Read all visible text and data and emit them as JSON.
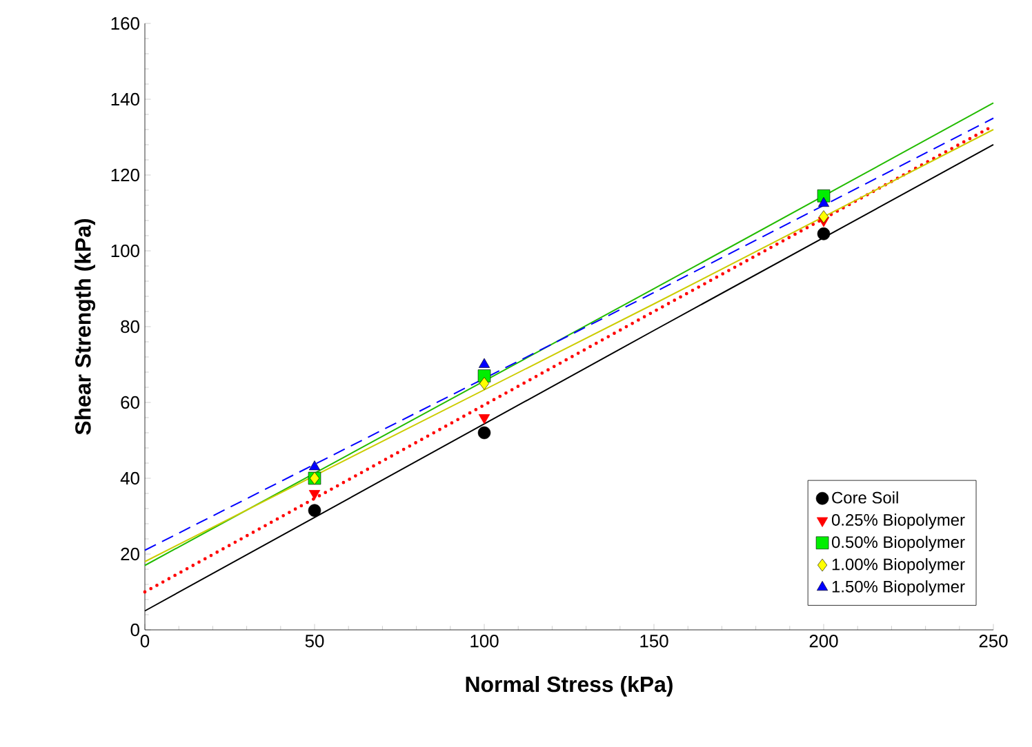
{
  "chart_data": {
    "type": "scatter",
    "xlabel": "Normal Stress (kPa)",
    "ylabel": "Shear Strength (kPa)",
    "x": [
      50,
      100,
      200
    ],
    "series": [
      {
        "name": "Core Soil",
        "color": "#000000",
        "marker": "circle",
        "values": [
          31.5,
          52,
          104.5
        ]
      },
      {
        "name": "0.25% Biopolymer",
        "color": "#ff0000",
        "marker": "triangle-down",
        "values": [
          36,
          56,
          108
        ]
      },
      {
        "name": "0.50% Biopolymer",
        "color": "#00ee00",
        "marker": "square",
        "values": [
          40,
          67,
          114.5
        ]
      },
      {
        "name": "1.00% Biopolymer",
        "color": "#ffff00",
        "marker": "diamond",
        "values": [
          40,
          65,
          109
        ]
      },
      {
        "name": "1.50% Biopolymer",
        "color": "#0000ff",
        "marker": "triangle",
        "values": [
          43,
          70,
          112.5
        ]
      },
      {
        "type": "line",
        "color": "#000000",
        "line_style": "solid",
        "x": [
          0,
          150,
          250
        ],
        "values": [
          5,
          79,
          128
        ]
      },
      {
        "type": "line",
        "color": "#ff0000",
        "line_style": "dotted",
        "x": [
          0,
          150,
          250
        ],
        "values": [
          10,
          84,
          133
        ]
      },
      {
        "type": "line",
        "color": "#22bb00",
        "line_style": "solid",
        "x": [
          0,
          150,
          250
        ],
        "values": [
          17,
          90,
          139
        ]
      },
      {
        "type": "line",
        "color": "#cccc00",
        "line_style": "solid",
        "x": [
          0,
          150,
          250
        ],
        "values": [
          18,
          86,
          132
        ]
      },
      {
        "type": "line",
        "color": "#0000ff",
        "line_style": "dashed",
        "x": [
          0,
          150,
          250
        ],
        "values": [
          21,
          89,
          135
        ]
      }
    ],
    "xlim": [
      0,
      250
    ],
    "ylim": [
      0,
      160
    ],
    "xticks": [
      0,
      50,
      100,
      150,
      200,
      250
    ],
    "yticks": [
      0,
      20,
      40,
      60,
      80,
      100,
      120,
      140,
      160
    ],
    "grid": false,
    "legend": "bottom right"
  }
}
